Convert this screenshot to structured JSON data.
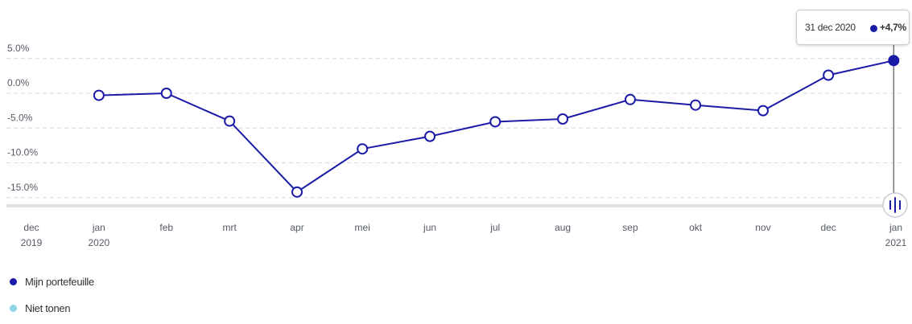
{
  "chart_data": {
    "type": "line",
    "y_ticks": [
      {
        "value": 5,
        "label": "5.0%"
      },
      {
        "value": 0,
        "label": "0.0%"
      },
      {
        "value": -5,
        "label": "-5.0%"
      },
      {
        "value": -10,
        "label": "-10.0%"
      },
      {
        "value": -15,
        "label": "-15.0%"
      }
    ],
    "x_ticks": [
      {
        "date": "2019-12-01",
        "label": [
          "dec",
          "2019"
        ]
      },
      {
        "date": "2020-01-01",
        "label": [
          "jan",
          "2020"
        ]
      },
      {
        "date": "2020-02-01",
        "label": [
          "feb"
        ]
      },
      {
        "date": "2020-03-01",
        "label": [
          "mrt"
        ]
      },
      {
        "date": "2020-04-01",
        "label": [
          "apr"
        ]
      },
      {
        "date": "2020-05-01",
        "label": [
          "mei"
        ]
      },
      {
        "date": "2020-06-01",
        "label": [
          "jun"
        ]
      },
      {
        "date": "2020-07-01",
        "label": [
          "jul"
        ]
      },
      {
        "date": "2020-08-01",
        "label": [
          "aug"
        ]
      },
      {
        "date": "2020-09-01",
        "label": [
          "sep"
        ]
      },
      {
        "date": "2020-10-01",
        "label": [
          "okt"
        ]
      },
      {
        "date": "2020-11-01",
        "label": [
          "nov"
        ]
      },
      {
        "date": "2020-12-01",
        "label": [
          "dec"
        ]
      },
      {
        "date": "2021-01-01",
        "label": [
          "jan",
          "2021"
        ]
      }
    ],
    "series": [
      {
        "name": "Mijn portefeuille",
        "color": "#1b1ba8",
        "points": [
          {
            "x": "2020-01-01",
            "y": -0.3
          },
          {
            "x": "2020-02-01",
            "y": 0.0
          },
          {
            "x": "2020-03-01",
            "y": -4.0
          },
          {
            "x": "2020-04-01",
            "y": -14.2
          },
          {
            "x": "2020-05-01",
            "y": -8.0
          },
          {
            "x": "2020-06-01",
            "y": -6.2
          },
          {
            "x": "2020-07-01",
            "y": -4.1
          },
          {
            "x": "2020-08-01",
            "y": -3.7
          },
          {
            "x": "2020-09-01",
            "y": -0.9
          },
          {
            "x": "2020-10-01",
            "y": -1.7
          },
          {
            "x": "2020-11-01",
            "y": -2.5
          },
          {
            "x": "2020-12-01",
            "y": 2.6
          },
          {
            "x": "2020-12-31",
            "y": 4.7
          }
        ]
      }
    ],
    "grid": true
  },
  "tooltip": {
    "date": "31 dec 2020",
    "value": "+4,7%",
    "dot_color": "#1b1ba8"
  },
  "legend": [
    {
      "label": "Mijn portefeuille",
      "color": "#1b1ba8"
    },
    {
      "label": "Niet tonen",
      "color": "#8fd3e8"
    }
  ]
}
